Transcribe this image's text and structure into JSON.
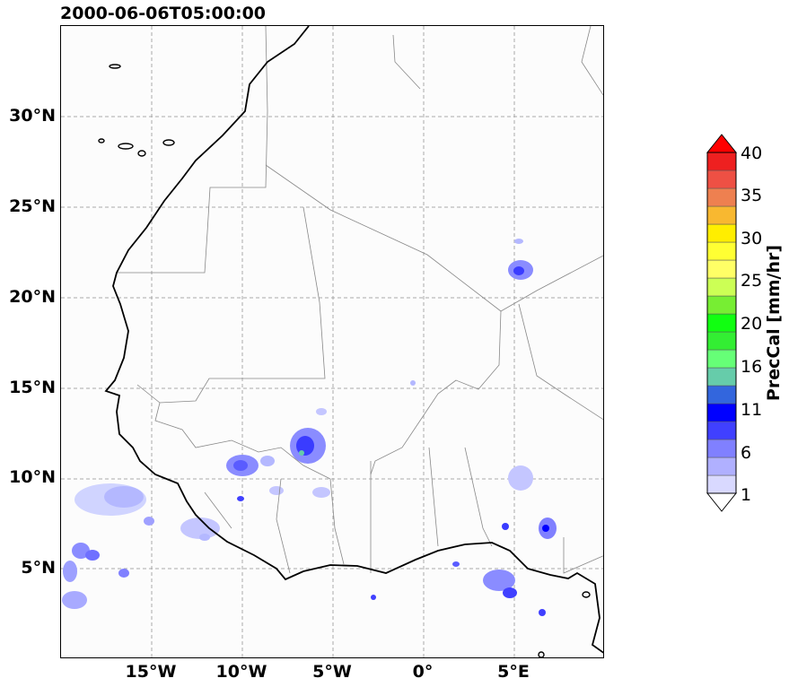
{
  "title": "2000-06-06T05:00:00",
  "lat_labels": [
    "30°N",
    "25°N",
    "20°N",
    "15°N",
    "10°N",
    "5°N"
  ],
  "lon_labels": [
    "15°W",
    "10°W",
    "5°W",
    "0°",
    "5°E"
  ],
  "colorbar": {
    "title": "PrecCal [mm/hr]",
    "tick_labels": [
      "1",
      "6",
      "11",
      "16",
      "20",
      "25",
      "30",
      "35",
      "40"
    ],
    "colors": [
      "#d9d9ff",
      "#b0b0ff",
      "#8080ff",
      "#4040ff",
      "#0000ff",
      "#3366dd",
      "#66ccaa",
      "#66ff77",
      "#33ee33",
      "#11ff11",
      "#77ee33",
      "#ccff55",
      "#ffff66",
      "#ffff33",
      "#ffee00",
      "#f8b830",
      "#ee8050",
      "#ee5044",
      "#ee2020"
    ],
    "extend_max_color": "#ff0000",
    "extend_min_color": "#ffffff"
  },
  "map": {
    "extent_lon": [
      -20,
      10
    ],
    "extent_lat": [
      0,
      35
    ],
    "gridlines_lon": [
      -15,
      -10,
      -5,
      0,
      5
    ],
    "gridlines_lat": [
      5,
      10,
      15,
      20,
      25,
      30
    ]
  }
}
